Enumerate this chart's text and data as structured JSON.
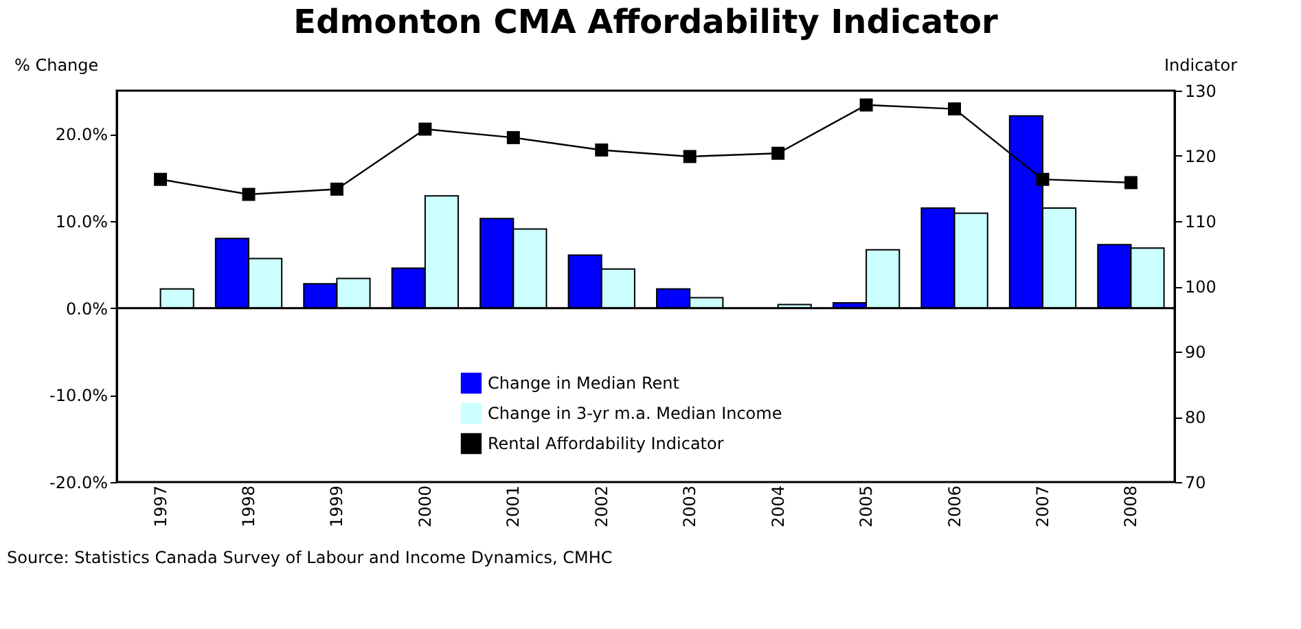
{
  "chart_data": {
    "type": "bar",
    "title": "Edmonton CMA Affordability Indicator",
    "ylabel": "% Change",
    "y2label": "Indicator",
    "categories": [
      "1997",
      "1998",
      "1999",
      "2000",
      "2001",
      "2002",
      "2003",
      "2004",
      "2005",
      "2006",
      "2007",
      "2008"
    ],
    "series": [
      {
        "name": "Change in Median Rent",
        "color": "#0000ff",
        "values": [
          null,
          8.0,
          2.8,
          4.6,
          10.3,
          6.1,
          2.2,
          null,
          0.6,
          11.5,
          22.1,
          7.3
        ]
      },
      {
        "name": "Change in 3-yr m.a. Median Income",
        "color": "#ccffff",
        "values": [
          2.2,
          5.7,
          3.4,
          12.9,
          9.1,
          4.5,
          1.2,
          0.4,
          6.7,
          10.9,
          11.5,
          6.9
        ]
      },
      {
        "name": "Rental Affordability Indicator",
        "type": "line",
        "axis": "y2",
        "color": "#000000",
        "marker": "square",
        "values": [
          116.4,
          114.1,
          114.9,
          124.1,
          122.8,
          120.9,
          119.9,
          120.4,
          127.8,
          127.2,
          116.4,
          115.9
        ]
      }
    ],
    "ylim": [
      -20,
      25
    ],
    "yticks": [
      {
        "value": -20,
        "label": "-20.0%"
      },
      {
        "value": -10,
        "label": "-10.0%"
      },
      {
        "value": 0,
        "label": "0.0%"
      },
      {
        "value": 10,
        "label": "10.0%"
      },
      {
        "value": 20,
        "label": "20.0%"
      }
    ],
    "y2lim": [
      70,
      130
    ],
    "y2ticks": [
      70,
      80,
      90,
      100,
      110,
      120,
      130
    ],
    "ref_lines": [
      {
        "axis": "y",
        "value": 0,
        "color": "#000000"
      }
    ],
    "legend": "bottom",
    "grid": false,
    "annotations": [
      "Source: Statistics Canada Survey of Labour and Income Dynamics, CMHC"
    ]
  }
}
